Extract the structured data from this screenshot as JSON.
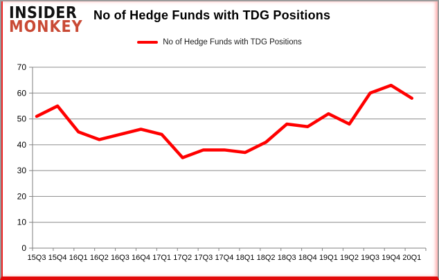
{
  "logo": {
    "line1": "INSIDER",
    "line2": "MONKEY",
    "color_top": "#101010",
    "color_bottom": "#c94a35"
  },
  "header": {
    "title": "No of Hedge Funds with TDG Positions"
  },
  "legend": {
    "label": "No of Hedge Funds with TDG Positions",
    "line_color": "#ff0000"
  },
  "chart_data": {
    "type": "line",
    "title": "No of Hedge Funds with TDG Positions",
    "series_name": "No of Hedge Funds with TDG Positions",
    "categories": [
      "15Q3",
      "15Q4",
      "16Q1",
      "16Q2",
      "16Q3",
      "16Q4",
      "17Q1",
      "17Q2",
      "17Q3",
      "17Q4",
      "18Q1",
      "18Q2",
      "18Q3",
      "18Q4",
      "19Q1",
      "19Q2",
      "19Q3",
      "19Q4",
      "20Q1"
    ],
    "values": [
      51,
      55,
      45,
      42,
      44,
      46,
      44,
      35,
      38,
      38,
      37,
      41,
      48,
      47,
      52,
      48,
      60,
      63,
      58
    ],
    "xlabel": "",
    "ylabel": "",
    "ylim": [
      0,
      70
    ],
    "ytick_step": 10,
    "grid": true,
    "legend_position": "top-center",
    "line_color": "#ff0000",
    "grid_color": "#8c8c8c",
    "axis_color": "#7f7f7f",
    "label_color": "#000000"
  }
}
